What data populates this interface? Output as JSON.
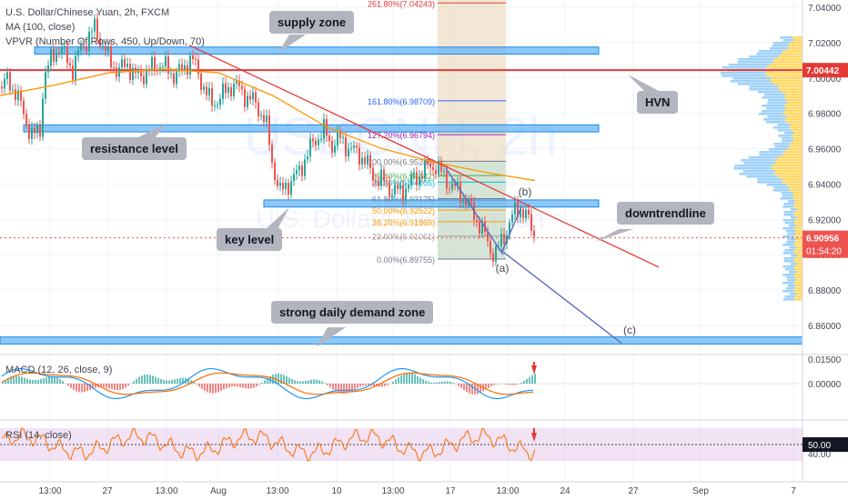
{
  "header": {
    "title": "U.S. Dollar/Chinese Yuan, 2h, FXCM",
    "ma_label": "MA (100, close)",
    "vpvr_label": "VPVR (Number Of Rows, 450, Up/Down, 70)"
  },
  "watermark": {
    "symbol": "USDCNH, 2h",
    "name": "U.S. Dollar/Chinese Yuan"
  },
  "callouts": {
    "supply_zone": "supply zone",
    "resistance_level": "resistance level",
    "key_level": "key level",
    "hvn": "HVN",
    "downtrendline": "downtrendline",
    "strong_demand": "strong daily demand zone"
  },
  "wave_labels": {
    "a": "(a)",
    "b": "(b)",
    "c": "(c)"
  },
  "price_badges": {
    "hvn_price": "7.00442",
    "last_price": "6.90956",
    "countdown": "01:54:20"
  },
  "indicators": {
    "macd_label": "MACD (12, 26, close, 9)",
    "rsi_label": "RSI (14, close)",
    "rsi_badge": "50.00"
  },
  "colors": {
    "candle_up": "#26a69a",
    "candle_down": "#ef5350",
    "zone_fill": "#64b5f6",
    "hvn_line": "#e53935",
    "ma_line": "#ff9800",
    "trendline": "#e53935",
    "projection": "#5c6bc0",
    "rsi_band": "#e1bee7",
    "macd_line": "#2196f3",
    "signal_line": "#ff6d00"
  },
  "chart_data": {
    "type": "candlestick",
    "symbol": "USD/CNH",
    "timeframe": "2h",
    "y_ticks": [
      "7.04000",
      "7.02000",
      "7.00000",
      "6.98000",
      "6.96000",
      "6.94000",
      "6.92000",
      "6.90000",
      "6.88000",
      "6.86000"
    ],
    "ylim": [
      6.845,
      7.042
    ],
    "x_ticks": [
      "13:00",
      "27",
      "13:00",
      "Aug",
      "13:00",
      "10",
      "13:00",
      "17",
      "13:00",
      "24",
      "27",
      "Sep",
      "7"
    ],
    "price_path": [
      [
        0,
        6.995
      ],
      [
        8,
        6.998
      ],
      [
        18,
        6.992
      ],
      [
        28,
        6.976
      ],
      [
        36,
        6.967
      ],
      [
        44,
        6.97
      ],
      [
        48,
        7.0
      ],
      [
        56,
        7.01
      ],
      [
        64,
        7.018
      ],
      [
        72,
        7.012
      ],
      [
        80,
        7.005
      ],
      [
        88,
        7.016
      ],
      [
        96,
        7.022
      ],
      [
        104,
        7.028
      ],
      [
        112,
        7.02
      ],
      [
        120,
        7.01
      ],
      [
        130,
        7.004
      ],
      [
        140,
        7.008
      ],
      [
        150,
        7.0
      ],
      [
        162,
        7.004
      ],
      [
        176,
        7.008
      ],
      [
        190,
        7.002
      ],
      [
        200,
        7.004
      ],
      [
        210,
        7.012
      ],
      [
        220,
        7.0
      ],
      [
        232,
        6.985
      ],
      [
        244,
        6.99
      ],
      [
        256,
        6.997
      ],
      [
        270,
        6.99
      ],
      [
        282,
        6.985
      ],
      [
        292,
        6.975
      ],
      [
        300,
        6.95
      ],
      [
        308,
        6.935
      ],
      [
        316,
        6.94
      ],
      [
        326,
        6.945
      ],
      [
        336,
        6.955
      ],
      [
        346,
        6.965
      ],
      [
        356,
        6.97
      ],
      [
        364,
        6.962
      ],
      [
        372,
        6.966
      ],
      [
        380,
        6.962
      ],
      [
        390,
        6.958
      ],
      [
        400,
        6.955
      ],
      [
        410,
        6.944
      ],
      [
        420,
        6.942
      ],
      [
        430,
        6.937
      ],
      [
        440,
        6.935
      ],
      [
        448,
        6.94
      ],
      [
        458,
        6.944
      ],
      [
        468,
        6.949
      ],
      [
        478,
        6.951
      ],
      [
        488,
        6.944
      ],
      [
        498,
        6.938
      ],
      [
        508,
        6.934
      ],
      [
        516,
        6.927
      ],
      [
        524,
        6.92
      ],
      [
        532,
        6.912
      ],
      [
        538,
        6.904
      ],
      [
        544,
        6.9
      ],
      [
        550,
        6.906
      ],
      [
        556,
        6.913
      ],
      [
        560,
        6.918
      ],
      [
        566,
        6.924
      ],
      [
        572,
        6.927
      ],
      [
        578,
        6.922
      ],
      [
        584,
        6.915
      ],
      [
        588,
        6.91
      ]
    ],
    "ma_path": [
      [
        0,
        6.99
      ],
      [
        60,
        6.996
      ],
      [
        120,
        7.003
      ],
      [
        180,
        7.005
      ],
      [
        240,
        7.003
      ],
      [
        300,
        6.99
      ],
      [
        360,
        6.972
      ],
      [
        420,
        6.96
      ],
      [
        480,
        6.952
      ],
      [
        540,
        6.946
      ],
      [
        588,
        6.942
      ]
    ],
    "zones": [
      {
        "name": "supply zone",
        "y_top": 7.0175,
        "y_bottom": 7.0135,
        "x_end": 658
      },
      {
        "name": "resistance level",
        "y_top": 6.9735,
        "y_bottom": 6.9695,
        "x_end": 658
      },
      {
        "name": "key level",
        "y_top": 6.931,
        "y_bottom": 6.927,
        "x_end": 658
      },
      {
        "name": "strong daily demand zone",
        "y_top": 6.8535,
        "y_bottom": 6.8495,
        "x_end": 882
      }
    ],
    "hvn_price": 7.00442,
    "last_price": 6.90956,
    "fibonacci": [
      {
        "ratio": "261.80%",
        "price": 7.04243
      },
      {
        "ratio": "161.80%",
        "price": 6.98709
      },
      {
        "ratio": "127.20%",
        "price": 6.96794
      },
      {
        "ratio": "100.00%",
        "price": 6.95289
      },
      {
        "ratio": "85.40%",
        "price": 6.94482
      },
      {
        "ratio": "78.60%",
        "price": 6.94105
      },
      {
        "ratio": "61.80%",
        "price": 6.93175
      },
      {
        "ratio": "50.00%",
        "price": 6.92522
      },
      {
        "ratio": "38.20%",
        "price": 6.91869
      },
      {
        "ratio": "23.60%",
        "price": 6.91061
      },
      {
        "ratio": "0.00%",
        "price": 6.89755
      }
    ],
    "downtrendline": [
      [
        208,
        7.0185
      ],
      [
        724,
        6.893
      ]
    ],
    "projection": [
      [
        573,
        6.927
      ],
      [
        552,
        6.902
      ],
      [
        683,
        6.85
      ]
    ],
    "macd": {
      "zero_label": "0.00000",
      "upper_label": "0.01500"
    },
    "rsi": {
      "level_label": "40.00",
      "value": 50.0
    }
  }
}
